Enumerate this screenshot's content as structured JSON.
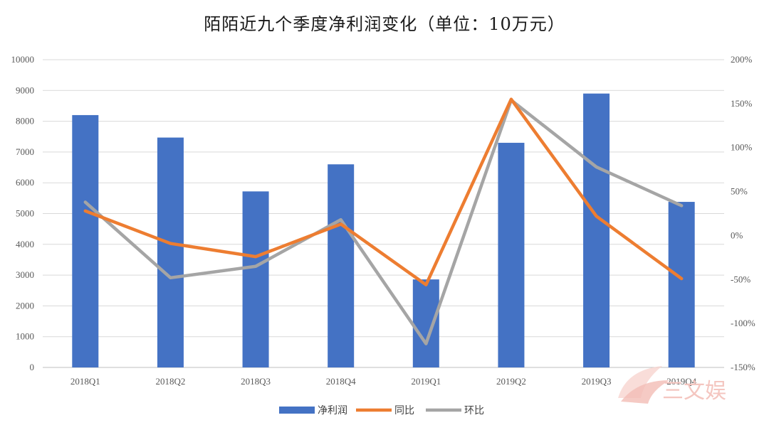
{
  "chart_data": {
    "type": "bar",
    "title": "陌陌近九个季度净利润变化（单位：10万元）",
    "categories": [
      "2018Q1",
      "2018Q2",
      "2018Q3",
      "2018Q4",
      "2019Q1",
      "2019Q2",
      "2019Q3",
      "2019Q4"
    ],
    "left_axis": {
      "ylim": [
        0,
        10000
      ],
      "ticks": [
        0,
        1000,
        2000,
        3000,
        4000,
        5000,
        6000,
        7000,
        8000,
        9000,
        10000
      ],
      "tick_labels": [
        "0",
        "1000",
        "2000",
        "3000",
        "4000",
        "5000",
        "6000",
        "7000",
        "8000",
        "9000",
        "10000"
      ]
    },
    "right_axis": {
      "ylim": [
        -150,
        200
      ],
      "ticks": [
        -150,
        -100,
        -50,
        0,
        50,
        100,
        150,
        200
      ],
      "tick_labels": [
        "-150%",
        "-100%",
        "-50%",
        "0%",
        "50%",
        "100%",
        "150%",
        "200%"
      ]
    },
    "series": [
      {
        "name": "净利润",
        "type": "bar",
        "axis": "left",
        "color": "#4472C4",
        "values": [
          8200,
          7470,
          5720,
          6600,
          2860,
          7300,
          8900,
          5380
        ]
      },
      {
        "name": "同比",
        "type": "line",
        "axis": "right",
        "color": "#ED7D31",
        "values": [
          28,
          -9,
          -24,
          13,
          -56,
          155,
          22,
          -49
        ]
      },
      {
        "name": "环比",
        "type": "line",
        "axis": "right",
        "color": "#A5A5A5",
        "values": [
          38,
          -48,
          -35,
          18,
          -123,
          154,
          78,
          34
        ]
      }
    ],
    "grid": true,
    "legend_position": "bottom"
  },
  "watermark": {
    "text": "三文娱",
    "color": "#f4c6c0",
    "icon": "fan-logo-icon"
  }
}
